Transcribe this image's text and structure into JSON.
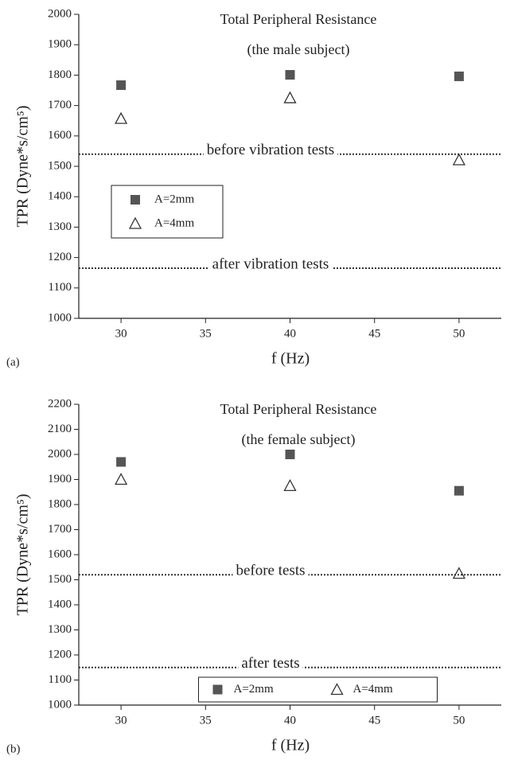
{
  "chart_data": [
    {
      "type": "scatter",
      "panel": "(a)",
      "title": "Total Peripheral Resistance",
      "subtitle": "(the male subject)",
      "x_label": "f (Hz)",
      "y_label": "TPR (Dyne*s/cm⁵)",
      "x": [
        30,
        40,
        50
      ],
      "series": [
        {
          "name": "A=2mm",
          "color": "#555555",
          "marker": "square",
          "values": [
            1767,
            1801,
            1796
          ]
        },
        {
          "name": "A=4mm",
          "color": "#333333",
          "marker": "triangle",
          "values": [
            1657,
            1725,
            1521
          ]
        }
      ],
      "reference_lines": [
        {
          "label": "before vibration tests",
          "value": 1540
        },
        {
          "label": "after vibration tests",
          "value": 1165
        }
      ],
      "xlim": [
        27.5,
        52.5
      ],
      "xticks": [
        30,
        35,
        40,
        45,
        50
      ],
      "ylim": [
        1000,
        2000
      ],
      "yticks": [
        1000,
        1100,
        1200,
        1300,
        1400,
        1500,
        1600,
        1700,
        1800,
        1900,
        2000
      ],
      "legend": "center left"
    },
    {
      "type": "scatter",
      "panel": "(b)",
      "title": "Total Peripheral Resistance",
      "subtitle": "(the female subject)",
      "x_label": "f (Hz)",
      "y_label": "TPR (Dyne*s/cm⁵)",
      "x": [
        30,
        40,
        50
      ],
      "series": [
        {
          "name": "A=2mm",
          "color": "#555555",
          "marker": "square",
          "values": [
            1970,
            2000,
            1855
          ]
        },
        {
          "name": "A=4mm",
          "color": "#333333",
          "marker": "triangle",
          "values": [
            1900,
            1875,
            1525
          ]
        }
      ],
      "reference_lines": [
        {
          "label": "before tests",
          "value": 1520
        },
        {
          "label": "after tests",
          "value": 1150
        }
      ],
      "xlim": [
        27.5,
        52.5
      ],
      "xticks": [
        30,
        35,
        40,
        45,
        50
      ],
      "ylim": [
        1000,
        2200
      ],
      "yticks": [
        1000,
        1100,
        1200,
        1300,
        1400,
        1500,
        1600,
        1700,
        1800,
        1900,
        2000,
        2100,
        2200
      ],
      "legend": "lower center"
    }
  ]
}
